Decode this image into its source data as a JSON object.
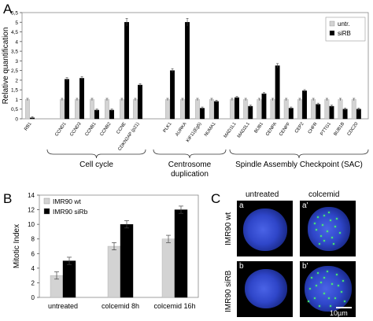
{
  "colors": {
    "untr": "#d3d3d3",
    "siRB": "#000000",
    "wt": "#d3d3d3",
    "siRb": "#000000"
  },
  "panels": {
    "a": "A",
    "b": "B",
    "c": "C"
  },
  "chart_data": [
    {
      "type": "bar",
      "ylabel": "Relative quantification",
      "xlabel": "",
      "ylim": [
        0,
        5.5
      ],
      "yticks": [
        "0",
        "0,5",
        "1",
        "1,5",
        "2",
        "2,5",
        "3",
        "3,5",
        "4",
        "4,5",
        "5",
        "5,5"
      ],
      "grid": false,
      "legend": "top-right",
      "categories": [
        "RB1",
        "CCND1",
        "CCND3",
        "CCNB1",
        "CCNB2",
        "CCNE",
        "CDKN2AP (p21)",
        "PLK1",
        "AURKA",
        "KIF11(Eg5)",
        "NUMA1",
        "MAD1L1",
        "MAD2L1",
        "BUB1",
        "CENPA",
        "CENPF",
        "CEP2",
        "CHFR",
        "PTTG1",
        "BUB1B",
        "CDC20"
      ],
      "series": [
        {
          "name": "untr.",
          "values": [
            1,
            1,
            1,
            1,
            1,
            1,
            1,
            1,
            1,
            1,
            1,
            1,
            1,
            1,
            1,
            1,
            1,
            1,
            1,
            1,
            1
          ]
        },
        {
          "name": "siRB",
          "values": [
            0.05,
            2.05,
            2.1,
            0.45,
            0.45,
            5.0,
            1.75,
            2.5,
            5.0,
            0.55,
            0.9,
            1.1,
            0.65,
            1.3,
            2.75,
            0.55,
            1.45,
            0.75,
            0.65,
            0.5,
            0.5
          ]
        }
      ],
      "groups": [
        {
          "label": "Cell cycle"
        },
        {
          "label": "Centrosome\nduplication"
        },
        {
          "label": "Spindle Assembly Checkpoint (SAC)"
        }
      ]
    },
    {
      "type": "bar",
      "ylabel": "Mitotic Index",
      "xlabel": "",
      "ylim": [
        0,
        14
      ],
      "yticks": [
        "0",
        "2",
        "4",
        "6",
        "8",
        "10",
        "12",
        "14"
      ],
      "grid": false,
      "legend": "top-left",
      "categories": [
        "untreated",
        "colcemid 8h",
        "colcemid 16h"
      ],
      "series": [
        {
          "name": "IMR90 wt",
          "values": [
            3.0,
            7.0,
            8.0
          ]
        },
        {
          "name": "IMR90 siRb",
          "values": [
            5.0,
            10.0,
            12.0
          ]
        }
      ]
    }
  ],
  "panel_c": {
    "columns": [
      "untreated",
      "colcemid"
    ],
    "rows": [
      "IMR90 wt",
      "IMR90 siRB"
    ],
    "insets": [
      "a",
      "a'",
      "b",
      "b'"
    ],
    "scale": "10µm"
  }
}
